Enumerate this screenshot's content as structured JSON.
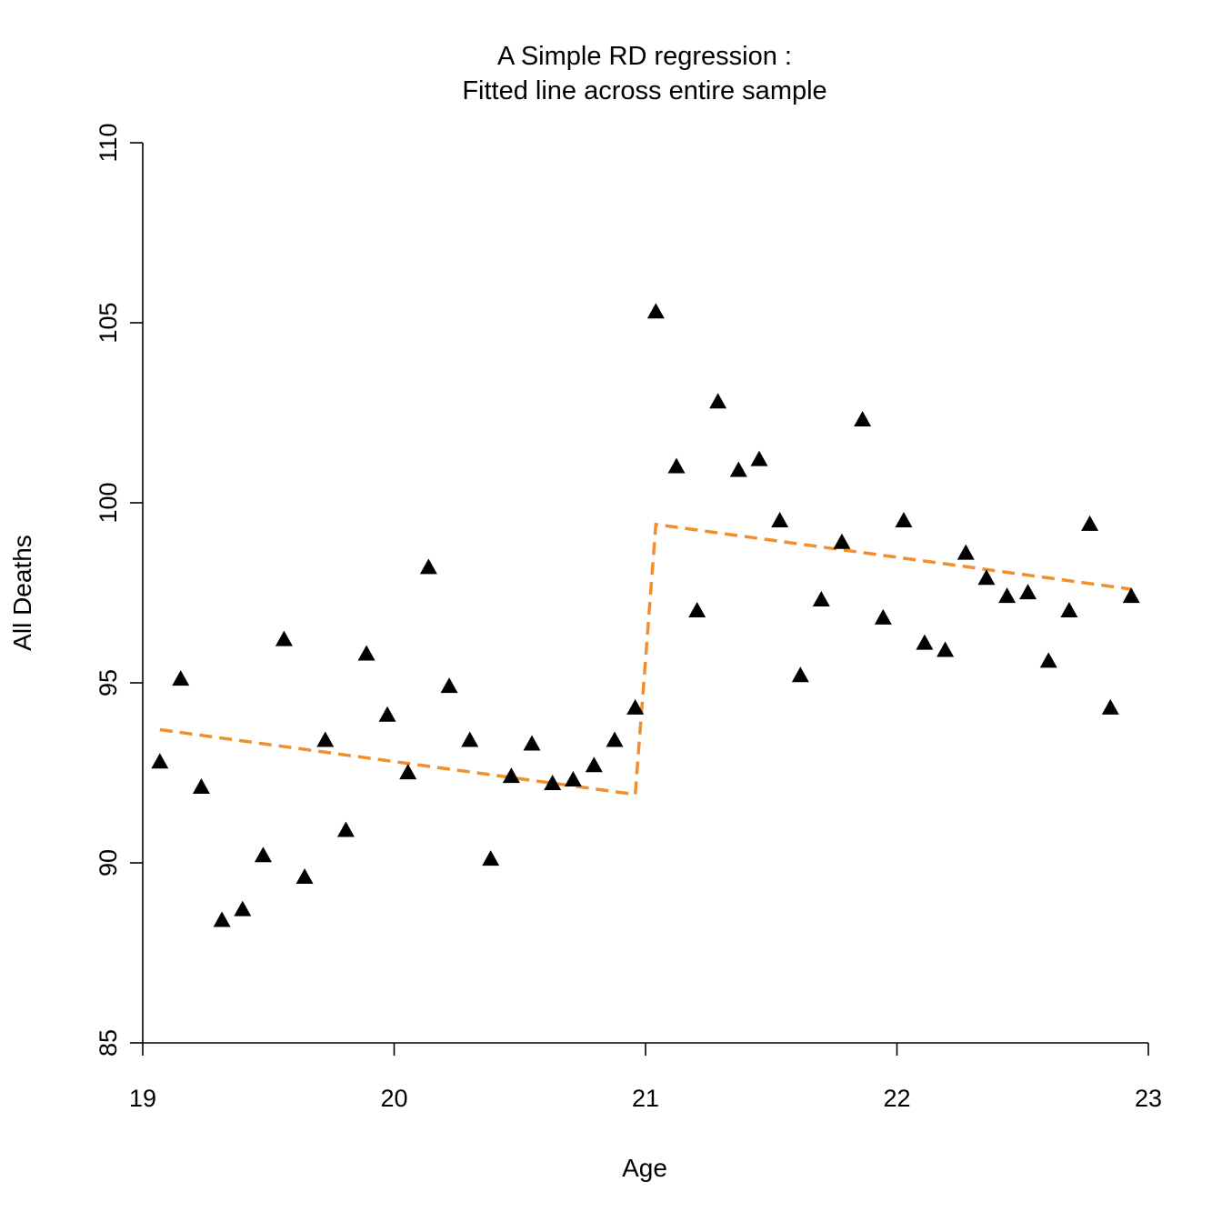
{
  "chart_data": {
    "type": "scatter",
    "title": "A Simple RD regression  :",
    "subtitle": "Fitted line across entire sample",
    "xlabel": "Age",
    "ylabel": "All Deaths",
    "xlim": [
      19,
      23
    ],
    "ylim": [
      85,
      110
    ],
    "xticks": [
      "19",
      "20",
      "21",
      "22",
      "23"
    ],
    "yticks": [
      "85",
      "90",
      "95",
      "100",
      "105",
      "110"
    ],
    "grid": false,
    "legend": "none",
    "marker": "filled-triangle",
    "marker_color": "#000000",
    "fit_color": "#F28E2B",
    "points": {
      "x": [
        19.068,
        19.151,
        19.233,
        19.315,
        19.397,
        19.479,
        19.562,
        19.644,
        19.726,
        19.808,
        19.89,
        19.973,
        20.055,
        20.137,
        20.219,
        20.301,
        20.384,
        20.466,
        20.548,
        20.63,
        20.712,
        20.795,
        20.877,
        20.959,
        21.041,
        21.123,
        21.205,
        21.288,
        21.37,
        21.452,
        21.534,
        21.616,
        21.699,
        21.781,
        21.863,
        21.945,
        22.027,
        22.11,
        22.192,
        22.274,
        22.356,
        22.438,
        22.521,
        22.603,
        22.685,
        22.767,
        22.849,
        22.932
      ],
      "y": [
        92.8,
        95.1,
        92.1,
        88.4,
        88.7,
        90.2,
        96.2,
        89.6,
        93.4,
        90.9,
        95.8,
        94.1,
        92.5,
        98.2,
        94.9,
        93.4,
        90.1,
        92.4,
        93.3,
        92.2,
        92.3,
        92.7,
        93.4,
        94.3,
        105.3,
        101.0,
        97.0,
        102.8,
        100.9,
        101.2,
        99.5,
        95.2,
        97.3,
        98.9,
        102.3,
        96.8,
        99.5,
        96.1,
        95.9,
        98.6,
        97.9,
        97.4,
        97.5,
        95.6,
        97.0,
        99.4,
        94.3,
        97.4
      ]
    },
    "fit_line": {
      "left": {
        "x": [
          19.068,
          20.959
        ],
        "y": [
          93.7,
          91.9
        ]
      },
      "right": {
        "x": [
          21.041,
          22.932
        ],
        "y": [
          99.4,
          97.6
        ]
      },
      "style": "dashed"
    }
  }
}
